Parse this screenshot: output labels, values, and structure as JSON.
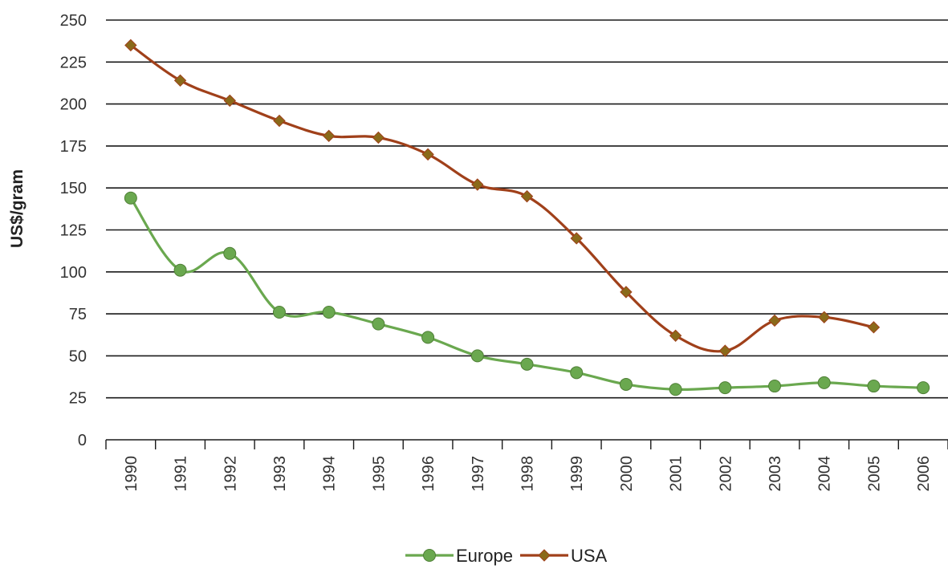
{
  "chart_data": {
    "type": "line",
    "title": "",
    "xlabel": "",
    "ylabel": "US$/gram",
    "categories": [
      "1990",
      "1991",
      "1992",
      "1993",
      "1994",
      "1995",
      "1996",
      "1997",
      "1998",
      "1999",
      "2000",
      "2001",
      "2002",
      "2003",
      "2004",
      "2005",
      "2006"
    ],
    "ylim": [
      0,
      250
    ],
    "yticks": [
      0,
      25,
      50,
      75,
      100,
      125,
      150,
      175,
      200,
      225,
      250
    ],
    "grid": "horizontal",
    "legend_position": "bottom",
    "series": [
      {
        "name": "Europe",
        "color": "#6aa84f",
        "marker": "circle",
        "values": [
          144,
          101,
          111,
          76,
          76,
          69,
          61,
          50,
          45,
          40,
          33,
          30,
          31,
          32,
          34,
          32,
          31
        ]
      },
      {
        "name": "USA",
        "color": "#a0401a",
        "marker": "diamond",
        "values": [
          235,
          214,
          202,
          190,
          181,
          180,
          170,
          152,
          145,
          120,
          88,
          62,
          53,
          71,
          73,
          67,
          null
        ]
      }
    ]
  }
}
